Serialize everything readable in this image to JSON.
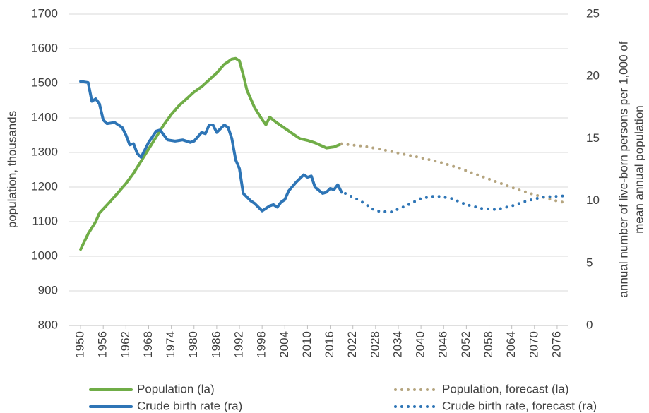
{
  "chart_data": {
    "type": "line",
    "ylabel": "population, thousands",
    "y2label": [
      "annual number of live-born persons per 1,000 of",
      "mean annual population"
    ],
    "xlim": [
      1947,
      2079
    ],
    "xticks": [
      1950,
      1956,
      1962,
      1968,
      1974,
      1980,
      1986,
      1992,
      1998,
      2004,
      2010,
      2016,
      2022,
      2028,
      2034,
      2040,
      2046,
      2052,
      2058,
      2064,
      2070,
      2076
    ],
    "ylim": [
      800,
      1700
    ],
    "yticks": [
      800,
      900,
      1000,
      1100,
      1200,
      1300,
      1400,
      1500,
      1600,
      1700
    ],
    "y2lim": [
      0,
      25
    ],
    "y2ticks": [
      0,
      5,
      10,
      15,
      20,
      25
    ],
    "grid": true,
    "legend": "bottom",
    "series": [
      {
        "name": "Population (la)",
        "color": "#70ad47",
        "style": "solid",
        "x": [
          1950,
          1952,
          1954,
          1955,
          1958,
          1960,
          1962,
          1964,
          1966,
          1968,
          1970,
          1972,
          1974,
          1976,
          1978,
          1980,
          1982,
          1984,
          1986,
          1988,
          1990,
          1991,
          1992,
          1993,
          1994,
          1996,
          1998,
          1999,
          2000,
          2002,
          2004,
          2006,
          2008,
          2010,
          2012,
          2014,
          2015,
          2017,
          2019
        ],
        "values": [
          1020,
          1065,
          1100,
          1125,
          1160,
          1185,
          1210,
          1240,
          1275,
          1310,
          1345,
          1380,
          1410,
          1435,
          1455,
          1475,
          1490,
          1510,
          1530,
          1555,
          1570,
          1572,
          1565,
          1525,
          1480,
          1430,
          1395,
          1380,
          1402,
          1385,
          1370,
          1355,
          1340,
          1335,
          1328,
          1318,
          1313,
          1316,
          1325
        ]
      },
      {
        "name": "Crude birth rate (ra)",
        "color": "#2e75b6",
        "style": "solid",
        "axis": "y2",
        "x": [
          1950,
          1952,
          1953,
          1954,
          1955,
          1956,
          1957,
          1959,
          1961,
          1962,
          1963,
          1964,
          1965,
          1966,
          1968,
          1970,
          1971,
          1973,
          1975,
          1977,
          1979,
          1980,
          1982,
          1983,
          1984,
          1985,
          1986,
          1987,
          1988,
          1989,
          1990,
          1991,
          1992,
          1993,
          1995,
          1996,
          1998,
          2000,
          2001,
          2002,
          2003,
          2004,
          2005,
          2007,
          2009,
          2010,
          2011,
          2012,
          2014,
          2015,
          2016,
          2017,
          2018,
          2019
        ],
        "values": [
          19.6,
          19.5,
          18.0,
          18.2,
          17.8,
          16.5,
          16.2,
          16.3,
          15.9,
          15.3,
          14.5,
          14.6,
          13.8,
          13.5,
          14.7,
          15.6,
          15.7,
          14.9,
          14.8,
          14.9,
          14.7,
          14.8,
          15.5,
          15.4,
          16.1,
          16.1,
          15.5,
          15.8,
          16.1,
          15.9,
          15.0,
          13.3,
          12.6,
          10.6,
          10.0,
          9.8,
          9.2,
          9.6,
          9.7,
          9.5,
          9.9,
          10.1,
          10.8,
          11.5,
          12.1,
          11.9,
          12.0,
          11.1,
          10.6,
          10.7,
          11.0,
          10.9,
          11.3,
          10.7
        ]
      },
      {
        "name": "Population, forecast (la)",
        "color": "#b5a57f",
        "style": "dotted",
        "x": [
          2019,
          2025,
          2030,
          2035,
          2040,
          2045,
          2050,
          2055,
          2060,
          2065,
          2070,
          2075,
          2078
        ],
        "values": [
          1325,
          1318,
          1308,
          1296,
          1285,
          1272,
          1255,
          1235,
          1215,
          1195,
          1178,
          1162,
          1155
        ]
      },
      {
        "name": "Crude birth rate, forecast (ra)",
        "color": "#2e75b6",
        "style": "dotted",
        "axis": "y2",
        "x": [
          2020,
          2024,
          2028,
          2032,
          2036,
          2040,
          2044,
          2048,
          2052,
          2056,
          2060,
          2064,
          2068,
          2072,
          2078
        ],
        "values": [
          10.6,
          10.0,
          9.2,
          9.1,
          9.6,
          10.2,
          10.4,
          10.2,
          9.7,
          9.4,
          9.3,
          9.6,
          10.0,
          10.3,
          10.4
        ]
      }
    ]
  }
}
